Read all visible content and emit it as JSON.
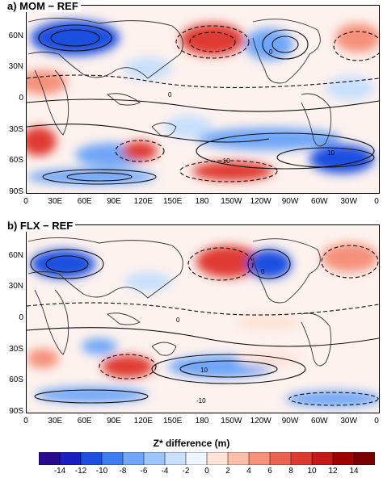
{
  "panels": [
    {
      "id": "a",
      "title": "a) MOM − REF"
    },
    {
      "id": "b",
      "title": "b) FLX − REF"
    }
  ],
  "axes": {
    "lat_labels": [
      "90N",
      "60N",
      "30N",
      "0",
      "30S",
      "60S",
      "90S"
    ],
    "lon_labels": [
      "0",
      "30E",
      "60E",
      "90E",
      "120E",
      "150E",
      "180",
      "150W",
      "120W",
      "90W",
      "60W",
      "30W",
      "0"
    ]
  },
  "contour_labels": [
    "0",
    "0",
    "0",
    "0",
    "10",
    "-10"
  ],
  "colorbar": {
    "title": "Z* difference (m)",
    "labels": [
      "-14",
      "-12",
      "-10",
      "-8",
      "-6",
      "-4",
      "-2",
      "0",
      "2",
      "4",
      "6",
      "8",
      "10",
      "12",
      "14"
    ],
    "colors": [
      "#2a0a8c",
      "#1b1fc1",
      "#1f4fe0",
      "#3f7ef0",
      "#6fa6f7",
      "#9cc6fb",
      "#c8e0fd",
      "#eef5ff",
      "#fde3d8",
      "#fbbfa8",
      "#f5917a",
      "#ec6450",
      "#df3a30",
      "#c41818",
      "#a00000",
      "#7a0000"
    ]
  },
  "colors": {
    "blue_strong": "#1f4fe0",
    "blue_mid": "#6fa6f7",
    "blue_light": "#c8e0fd",
    "red_strong": "#df3a30",
    "red_mid": "#f5917a",
    "red_light": "#fde3d8",
    "contour": "#111111",
    "coast": "#333333"
  }
}
